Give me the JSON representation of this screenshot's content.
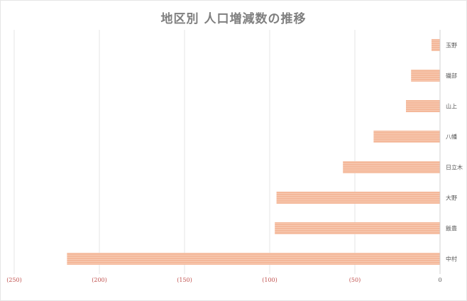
{
  "chart_data": {
    "type": "bar",
    "orientation": "horizontal",
    "title": "地区別 人口増減数の推移",
    "categories": [
      "玉野",
      "磯部",
      "山上",
      "八幡",
      "日立木",
      "大野",
      "飯豊",
      "中村"
    ],
    "values": [
      -5,
      -17,
      -20,
      -39,
      -57,
      -96,
      -97,
      -219
    ],
    "xlim": [
      -250,
      0
    ],
    "xticks": [
      -250,
      -200,
      -150,
      -100,
      -50,
      0
    ],
    "xtick_labels": [
      "(250)",
      "(200)",
      "(150)",
      "(100)",
      "(50)",
      "0"
    ],
    "category_axis_position": "right",
    "grid": "vertical",
    "legend": "none",
    "bar_color": "#f4b89a",
    "bar_stripe_color": "#f7cbb4",
    "xtick_label_color": "#c0504d"
  }
}
